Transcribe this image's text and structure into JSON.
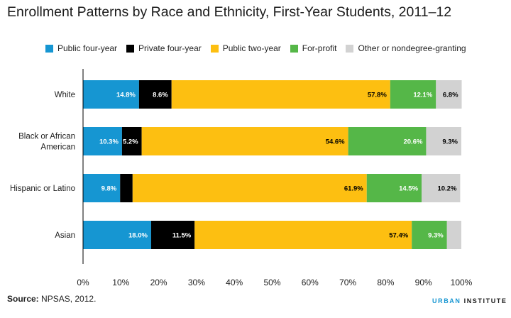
{
  "chart_data": {
    "type": "bar",
    "orientation": "horizontal",
    "stacked": true,
    "title": "Enrollment Patterns by Race and Ethnicity, First-Year Students, 2011–12",
    "categories": [
      "White",
      "Black or African American",
      "Hispanic or Latino",
      "Asian"
    ],
    "category_lines": [
      [
        "White"
      ],
      [
        "Black or African",
        "American"
      ],
      [
        "Hispanic or Latino"
      ],
      [
        "Asian"
      ]
    ],
    "series": [
      {
        "name": "Public four-year",
        "color": "#1696d2",
        "label_color": "#ffffff",
        "values": [
          14.8,
          10.3,
          9.8,
          18.0
        ],
        "labels": [
          "14.8%",
          "10.3%",
          "9.8%",
          "18.0%"
        ]
      },
      {
        "name": "Private four-year",
        "color": "#000000",
        "label_color": "#ffffff",
        "values": [
          8.6,
          5.2,
          3.3,
          11.5
        ],
        "labels": [
          "8.6%",
          "5.2%",
          "",
          "11.5%"
        ]
      },
      {
        "name": "Public two-year",
        "color": "#fdbf11",
        "label_color": "#000000",
        "values": [
          57.8,
          54.6,
          61.9,
          57.4
        ],
        "labels": [
          "57.8%",
          "54.6%",
          "61.9%",
          "57.4%"
        ]
      },
      {
        "name": "For-profit",
        "color": "#55b748",
        "label_color": "#ffffff",
        "values": [
          12.1,
          20.6,
          14.5,
          9.3
        ],
        "labels": [
          "12.1%",
          "20.6%",
          "14.5%",
          "9.3%"
        ]
      },
      {
        "name": "Other or nondegree-granting",
        "color": "#d2d2d2",
        "label_color": "#000000",
        "values": [
          6.8,
          9.3,
          10.2,
          3.8
        ],
        "labels": [
          "6.8%",
          "9.3%",
          "10.2%",
          ""
        ]
      }
    ],
    "xlim": [
      0,
      100
    ],
    "x_ticks": [
      0,
      10,
      20,
      30,
      40,
      50,
      60,
      70,
      80,
      90,
      100
    ],
    "x_tick_labels": [
      "0%",
      "10%",
      "20%",
      "30%",
      "40%",
      "50%",
      "60%",
      "70%",
      "80%",
      "90%",
      "100%"
    ],
    "xlabel": "",
    "ylabel": "",
    "grid": false,
    "legend_position": "top"
  },
  "footer": {
    "source_label": "Source:",
    "source_text": "NPSAS, 2012.",
    "logo_first": "URBAN",
    "logo_rest": "INSTITUTE"
  }
}
